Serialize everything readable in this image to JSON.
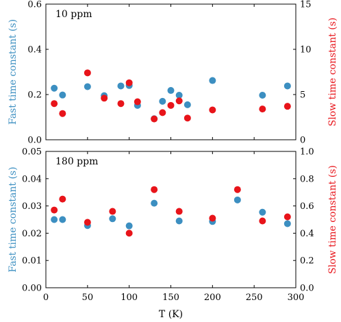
{
  "colors": {
    "fast": "#3c8fc1",
    "slow": "#e8141a"
  },
  "chart_data": [
    {
      "type": "scatter",
      "panel_label": "10 ppm",
      "xlim": [
        0,
        300
      ],
      "x_ticks": [
        0,
        50,
        100,
        150,
        200,
        250,
        300
      ],
      "xlabel": "",
      "ylabel_left": "Fast time constant (s)",
      "ylim_left": [
        0,
        0.6
      ],
      "yticks_left": [
        "0.0",
        "0.2",
        "0.4",
        "0.6"
      ],
      "ylabel_right": "Slow time constant (s)",
      "ylim_right": [
        0,
        15
      ],
      "yticks_right": [
        "0",
        "5",
        "10",
        "15"
      ],
      "series": [
        {
          "name": "Fast time constant (s)",
          "axis": "left",
          "points": [
            [
              10,
              0.228
            ],
            [
              20,
              0.198
            ],
            [
              50,
              0.235
            ],
            [
              70,
              0.195
            ],
            [
              90,
              0.238
            ],
            [
              100,
              0.24
            ],
            [
              110,
              0.152
            ],
            [
              130,
              0.093
            ],
            [
              140,
              0.17
            ],
            [
              150,
              0.218
            ],
            [
              160,
              0.197
            ],
            [
              170,
              0.155
            ],
            [
              200,
              0.262
            ],
            [
              260,
              0.197
            ],
            [
              290,
              0.238
            ]
          ]
        },
        {
          "name": "Slow time constant (s)",
          "axis": "right",
          "points": [
            [
              10,
              4.0
            ],
            [
              20,
              2.9
            ],
            [
              50,
              7.4
            ],
            [
              70,
              4.6
            ],
            [
              90,
              4.0
            ],
            [
              100,
              6.3
            ],
            [
              110,
              4.2
            ],
            [
              130,
              2.3
            ],
            [
              140,
              3.0
            ],
            [
              150,
              3.8
            ],
            [
              160,
              4.3
            ],
            [
              170,
              2.4
            ],
            [
              200,
              3.3
            ],
            [
              260,
              3.4
            ],
            [
              290,
              3.7
            ]
          ]
        }
      ]
    },
    {
      "type": "scatter",
      "panel_label": "180 ppm",
      "xlim": [
        0,
        300
      ],
      "x_ticks": [
        0,
        50,
        100,
        150,
        200,
        250,
        300
      ],
      "xlabel": "T (K)",
      "ylabel_left": "Fast time constant (s)",
      "ylim_left": [
        0,
        0.05
      ],
      "yticks_left": [
        "0.00",
        "0.01",
        "0.02",
        "0.03",
        "0.04",
        "0.05"
      ],
      "ylabel_right": "Slow time constant (s)",
      "ylim_right": [
        0,
        1.0
      ],
      "yticks_right": [
        "0.0",
        "0.2",
        "0.4",
        "0.6",
        "0.8",
        "1.0"
      ],
      "series": [
        {
          "name": "Fast time constant (s)",
          "axis": "left",
          "points": [
            [
              10,
              0.025
            ],
            [
              20,
              0.025
            ],
            [
              50,
              0.0228
            ],
            [
              80,
              0.0253
            ],
            [
              100,
              0.0227
            ],
            [
              130,
              0.031
            ],
            [
              160,
              0.0245
            ],
            [
              200,
              0.0243
            ],
            [
              230,
              0.0322
            ],
            [
              260,
              0.0277
            ],
            [
              290,
              0.0235
            ]
          ]
        },
        {
          "name": "Slow time constant (s)",
          "axis": "right",
          "points": [
            [
              10,
              0.57
            ],
            [
              20,
              0.65
            ],
            [
              50,
              0.48
            ],
            [
              80,
              0.56
            ],
            [
              100,
              0.4
            ],
            [
              130,
              0.72
            ],
            [
              160,
              0.56
            ],
            [
              200,
              0.51
            ],
            [
              230,
              0.72
            ],
            [
              260,
              0.49
            ],
            [
              290,
              0.52
            ]
          ]
        }
      ]
    }
  ]
}
